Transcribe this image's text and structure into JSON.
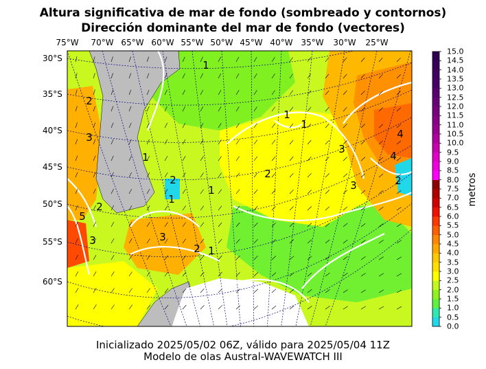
{
  "title": {
    "line1": "Altura significativa de mar de fondo (sombreado y contornos)",
    "line2": "Dirección dominante del mar de fondo (vectores)"
  },
  "footer": {
    "line1": "Inicializado 2025/05/02 06Z, válido para 2025/05/04 11Z",
    "line2": "Modelo de olas Austral-WAVEWATCH III"
  },
  "longitude_labels": [
    "75°W",
    "70°W",
    "65°W",
    "60°W",
    "55°W",
    "50°W",
    "45°W",
    "40°W",
    "35°W",
    "30°W",
    "25°W"
  ],
  "latitude_labels": [
    "30°S",
    "35°S",
    "40°S",
    "45°S",
    "50°S",
    "55°S",
    "60°S"
  ],
  "colorbar": {
    "title": "metros",
    "ticks": [
      "15.0",
      "14.5",
      "14.0",
      "13.5",
      "13.0",
      "12.5",
      "12.0",
      "11.5",
      "11.0",
      "10.5",
      "10.0",
      "9.5",
      "9.0",
      "8.5",
      "8.0",
      "7.5",
      "7.0",
      "6.5",
      "6.0",
      "5.5",
      "5.0",
      "4.5",
      "4.0",
      "3.5",
      "3.0",
      "2.5",
      "2.0",
      "1.5",
      "1.0",
      "0.5",
      "0.0"
    ],
    "colors": [
      "#20d8e8",
      "#30e8b0",
      "#60f040",
      "#90f020",
      "#c0f820",
      "#ffff00",
      "#ffe000",
      "#ffc800",
      "#ffa800",
      "#ff8800",
      "#ff6000",
      "#ff3800",
      "#f01000",
      "#d00000",
      "#b00000",
      "#900000",
      "#ff00ff",
      "#f000e0",
      "#e000c8",
      "#c800b0",
      "#b000a0",
      "#980090",
      "#880088",
      "#780080",
      "#680078",
      "#580070",
      "#480068",
      "#400060",
      "#380058",
      "#300050"
    ]
  },
  "contour_labels": [
    "1",
    "2",
    "3",
    "4",
    "1",
    "2",
    "3",
    "1",
    "2",
    "1",
    "1",
    "3",
    "2",
    "4",
    "2",
    "3",
    "1",
    "1",
    "2",
    "3",
    "5"
  ],
  "colors": {
    "land": "#bdbdbd",
    "ice": "#ffffff",
    "grid": "#000080",
    "contour": "#ffffff"
  }
}
